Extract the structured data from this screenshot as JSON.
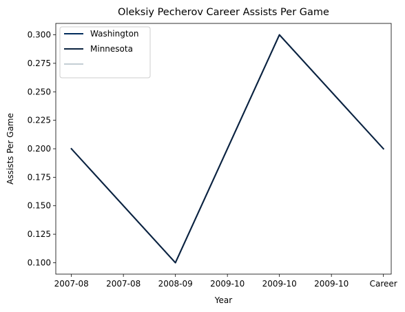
{
  "chart_data": {
    "type": "line",
    "title": "Oleksiy Pecherov Career Assists Per Game",
    "xlabel": "Year",
    "ylabel": "Assists Per Game",
    "categories": [
      "2007-08",
      "2007-08",
      "2008-09",
      "2009-10",
      "2009-10",
      "2009-10",
      "Career"
    ],
    "ylim": [
      0.09,
      0.31
    ],
    "yticks": [
      0.1,
      0.125,
      0.15,
      0.175,
      0.2,
      0.225,
      0.25,
      0.275,
      0.3
    ],
    "ytick_labels": [
      "0.100",
      "0.125",
      "0.150",
      "0.175",
      "0.200",
      "0.225",
      "0.250",
      "0.275",
      "0.300"
    ],
    "grid": false,
    "legend_position": "top-left",
    "series": [
      {
        "name": "Washington",
        "color": "#002B5C",
        "points": [
          [
            0,
            0.2
          ],
          [
            2,
            0.1
          ],
          [
            4,
            0.3
          ],
          [
            6,
            0.2
          ]
        ]
      },
      {
        "name": "Minnesota",
        "color": "#0C2340",
        "points": [
          [
            0,
            0.2
          ],
          [
            2,
            0.1
          ],
          [
            4,
            0.3
          ],
          [
            6,
            0.2
          ]
        ]
      },
      {
        "name": "",
        "color": "#C4CED4",
        "points": []
      }
    ]
  }
}
